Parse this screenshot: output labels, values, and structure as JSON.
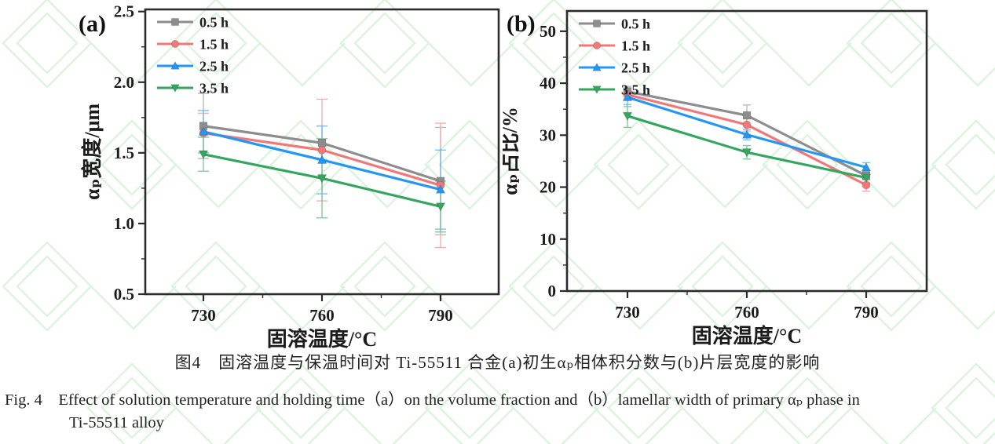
{
  "figure": {
    "caption_zh": "图4　固溶温度与保温时间对 Ti-55511 合金(a)初生αₚ相体积分数与(b)片层宽度的影响",
    "caption_en_line1": "Fig. 4　Effect of solution temperature and holding time（a）on the volume fraction and（b）lamellar width of primary αₚ phase in",
    "caption_en_line2": "Ti-55511 alloy"
  },
  "watermark": {
    "color": "#b9ecb9"
  },
  "frame_color": "#2b2b2b",
  "chart_data": [
    {
      "id": "a",
      "type": "line",
      "panel_label": "(a)",
      "xlabel": "固溶温度/°C",
      "ylabel": "αₚ宽度/μm",
      "categories": [
        "730",
        "760",
        "790"
      ],
      "ylim": [
        0.5,
        2.515
      ],
      "yticks": [
        0.5,
        1.0,
        1.5,
        2.0,
        2.5
      ],
      "ytick_labels": [
        "0.5",
        "1.0",
        "1.5",
        "2.0",
        "2.5"
      ],
      "grid": false,
      "legend_position": "top-left",
      "error_bars": true,
      "series": [
        {
          "name": "0.5 h",
          "marker": "square",
          "color": "#8d8d8d",
          "values": [
            1.69,
            1.57,
            1.3
          ],
          "errors": [
            0.23,
            0.12,
            0.38
          ]
        },
        {
          "name": "1.5 h",
          "marker": "circle",
          "color": "#f07878",
          "values": [
            1.64,
            1.52,
            1.27
          ],
          "errors": [
            0.14,
            0.36,
            0.44
          ]
        },
        {
          "name": "2.5 h",
          "marker": "triangle-up",
          "color": "#2397f3",
          "values": [
            1.65,
            1.45,
            1.24
          ],
          "errors": [
            0.15,
            0.24,
            0.28
          ]
        },
        {
          "name": "3.5 h",
          "marker": "triangle-down",
          "color": "#35a55f",
          "values": [
            1.49,
            1.32,
            1.12
          ],
          "errors": [
            0.12,
            0.28,
            0.18
          ]
        }
      ]
    },
    {
      "id": "b",
      "type": "line",
      "panel_label": "(b)",
      "xlabel": "固溶温度/°C",
      "ylabel": "αₚ占比/%",
      "categories": [
        "730",
        "760",
        "790"
      ],
      "ylim": [
        0,
        53.9
      ],
      "yticks": [
        0,
        10,
        20,
        30,
        40,
        50
      ],
      "ytick_labels": [
        "0",
        "10",
        "20",
        "30",
        "40",
        "50"
      ],
      "grid": false,
      "legend_position": "top-left",
      "error_bars": true,
      "series": [
        {
          "name": "0.5 h",
          "marker": "square",
          "color": "#8d8d8d",
          "values": [
            38.4,
            33.8,
            22.2
          ],
          "errors": [
            1.0,
            2.0,
            0.8
          ]
        },
        {
          "name": "1.5 h",
          "marker": "circle",
          "color": "#f07878",
          "values": [
            37.8,
            32.0,
            20.4
          ],
          "errors": [
            0.8,
            1.2,
            1.2
          ]
        },
        {
          "name": "2.5 h",
          "marker": "triangle-up",
          "color": "#2397f3",
          "values": [
            37.3,
            30.1,
            23.8
          ],
          "errors": [
            1.8,
            1.0,
            0.9
          ]
        },
        {
          "name": "3.5 h",
          "marker": "triangle-down",
          "color": "#35a55f",
          "values": [
            33.7,
            26.7,
            21.8
          ],
          "errors": [
            2.2,
            1.3,
            1.0
          ]
        }
      ]
    }
  ]
}
